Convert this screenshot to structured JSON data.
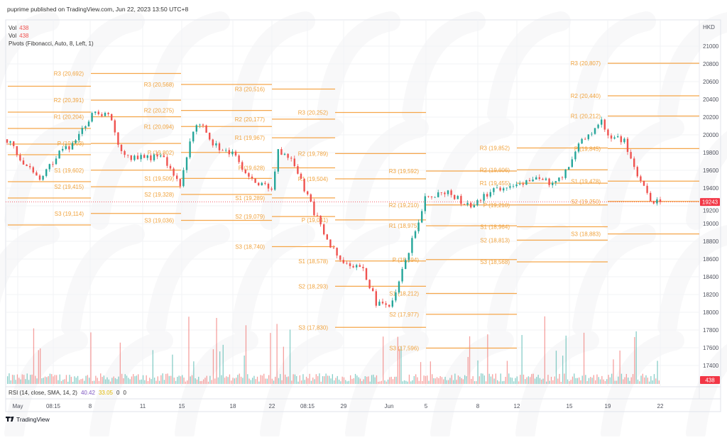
{
  "header": {
    "published": "puprime published on TradingView.com, Jun 22, 2023 13:50 UTC+8"
  },
  "legend": {
    "vol1_label": "Vol",
    "vol1_value": "438",
    "vol2_label": "Vol",
    "vol2_value": "438",
    "pivots_label": "Pivots (Fibonacci, Auto, 8, Left, 1)"
  },
  "rsi": {
    "label": "RSI (14, close, SMA, 14, 2)",
    "v1": "40.42",
    "v2": "33.05",
    "v3": "0",
    "v4": "0"
  },
  "footer": {
    "brand": "TradingView"
  },
  "colors": {
    "up": "#26a69a",
    "down": "#ef5350",
    "pivot": "#f5a64a",
    "badge": "#f23645"
  },
  "chart_data": {
    "type": "candlestick",
    "currency": "HKD",
    "ylim": [
      17300,
      21100
    ],
    "y_ticks": [
      "21000",
      "20800",
      "20600",
      "20400",
      "20200",
      "20000",
      "19800",
      "19600",
      "19400",
      "19200",
      "19000",
      "18800",
      "18600",
      "18400",
      "18200",
      "18000",
      "17800",
      "17600",
      "17400"
    ],
    "x_ticks": [
      "May",
      "08:15",
      "8",
      "11",
      "15",
      "18",
      "22",
      "08:15",
      "29",
      "Jun",
      "5",
      "8",
      "12",
      "15",
      "19",
      "22"
    ],
    "last_price": "19243",
    "last_volume": "438",
    "price_path": [
      [
        0,
        19950
      ],
      [
        7,
        19600
      ],
      [
        10,
        19520
      ],
      [
        16,
        19800
      ],
      [
        21,
        19900
      ],
      [
        26,
        20250
      ],
      [
        31,
        20240
      ],
      [
        34,
        19900
      ],
      [
        37,
        19750
      ],
      [
        48,
        19750
      ],
      [
        53,
        19400
      ],
      [
        56,
        19950
      ],
      [
        59,
        20150
      ],
      [
        63,
        19900
      ],
      [
        70,
        19750
      ],
      [
        74,
        19500
      ],
      [
        81,
        19400
      ],
      [
        83,
        19800
      ],
      [
        87,
        19750
      ],
      [
        92,
        19300
      ],
      [
        98,
        18800
      ],
      [
        102,
        18600
      ],
      [
        109,
        18500
      ],
      [
        113,
        18100
      ],
      [
        117,
        18050
      ],
      [
        120,
        18350
      ],
      [
        124,
        18800
      ],
      [
        128,
        19300
      ],
      [
        135,
        19350
      ],
      [
        141,
        19200
      ],
      [
        148,
        19350
      ],
      [
        155,
        19450
      ],
      [
        161,
        19500
      ],
      [
        168,
        19450
      ],
      [
        172,
        19650
      ],
      [
        176,
        19950
      ],
      [
        182,
        20150
      ],
      [
        185,
        19950
      ],
      [
        189,
        19950
      ],
      [
        191,
        19700
      ],
      [
        195,
        19400
      ],
      [
        197,
        19250
      ],
      [
        200,
        19243
      ]
    ],
    "pivot_periods": [
      {
        "levels": [
          [
            "",
            20548
          ],
          [
            "",
            20256
          ],
          [
            "",
            20072
          ],
          [
            "",
            19896
          ],
          [
            "",
            19776
          ],
          [
            "",
            19472
          ],
          [
            "",
            19288
          ],
          [
            "",
            18984
          ]
        ]
      },
      {
        "levels": [
          [
            "R3 (20,692)",
            20692
          ],
          [
            "R2 (20,391)",
            20391
          ],
          [
            "R1 (20,204)",
            20204
          ],
          [
            "P (19,903)",
            19903
          ],
          [
            "S1 (19,602)",
            19602
          ],
          [
            "S2 (19,415)",
            19415
          ],
          [
            "S3 (19,114)",
            19114
          ]
        ]
      },
      {
        "levels": [
          [
            "R3 (20,568)",
            20568
          ],
          [
            "R2 (20,275)",
            20275
          ],
          [
            "R1 (20,094)",
            20094
          ],
          [
            "P (19,802)",
            19802
          ],
          [
            "S1 (19,509)",
            19509
          ],
          [
            "S2 (19,328)",
            19328
          ],
          [
            "S3 (19,036)",
            19036
          ]
        ]
      },
      {
        "levels": [
          [
            "R3 (20,516)",
            20516
          ],
          [
            "R2 (20,177)",
            20177
          ],
          [
            "R1 (19,967)",
            19967
          ],
          [
            "P (19,628)",
            19628
          ],
          [
            "S1 (19,289)",
            19289
          ],
          [
            "S2 (19,079)",
            19079
          ],
          [
            "S3 (18,740)",
            18740
          ]
        ]
      },
      {
        "levels": [
          [
            "R3 (20,252)",
            20252
          ],
          [
            "R2 (19,789)",
            19789
          ],
          [
            "R1 (19,504)",
            19504
          ],
          [
            "P (19,041)",
            19041
          ],
          [
            "S1 (18,578)",
            18578
          ],
          [
            "S2 (18,293)",
            18293
          ],
          [
            "S3 (17,830)",
            17830
          ]
        ]
      },
      {
        "levels": [
          [
            "R3 (19,592)",
            19592
          ],
          [
            "R2 (19,210)",
            19210
          ],
          [
            "R1 (18,975)",
            18975
          ],
          [
            "P (18,594)",
            18594
          ],
          [
            "S1 (18,212)",
            18212
          ],
          [
            "S2 (17,977)",
            17977
          ],
          [
            "S3 (17,596)",
            17596
          ]
        ]
      },
      {
        "levels": [
          [
            "R3 (19,852)",
            19852
          ],
          [
            "R2 (19,606)",
            19606
          ],
          [
            "R1 (19,455)",
            19455
          ],
          [
            "P (19,210)",
            19210
          ],
          [
            "S1 (18,964)",
            18964
          ],
          [
            "S2 (18,813)",
            18813
          ],
          [
            "S3 (18,568)",
            18568
          ]
        ]
      },
      {
        "levels": [
          [
            "R3 (20,807)",
            20807
          ],
          [
            "R2 (20,440)",
            20440
          ],
          [
            "R1 (20,212)",
            20212
          ],
          [
            "P (19,845)",
            19845
          ],
          [
            "S1 (19,478)",
            19478
          ],
          [
            "S2 (19,250)",
            19250
          ],
          [
            "S3 (18,883)",
            18883
          ]
        ]
      }
    ]
  }
}
